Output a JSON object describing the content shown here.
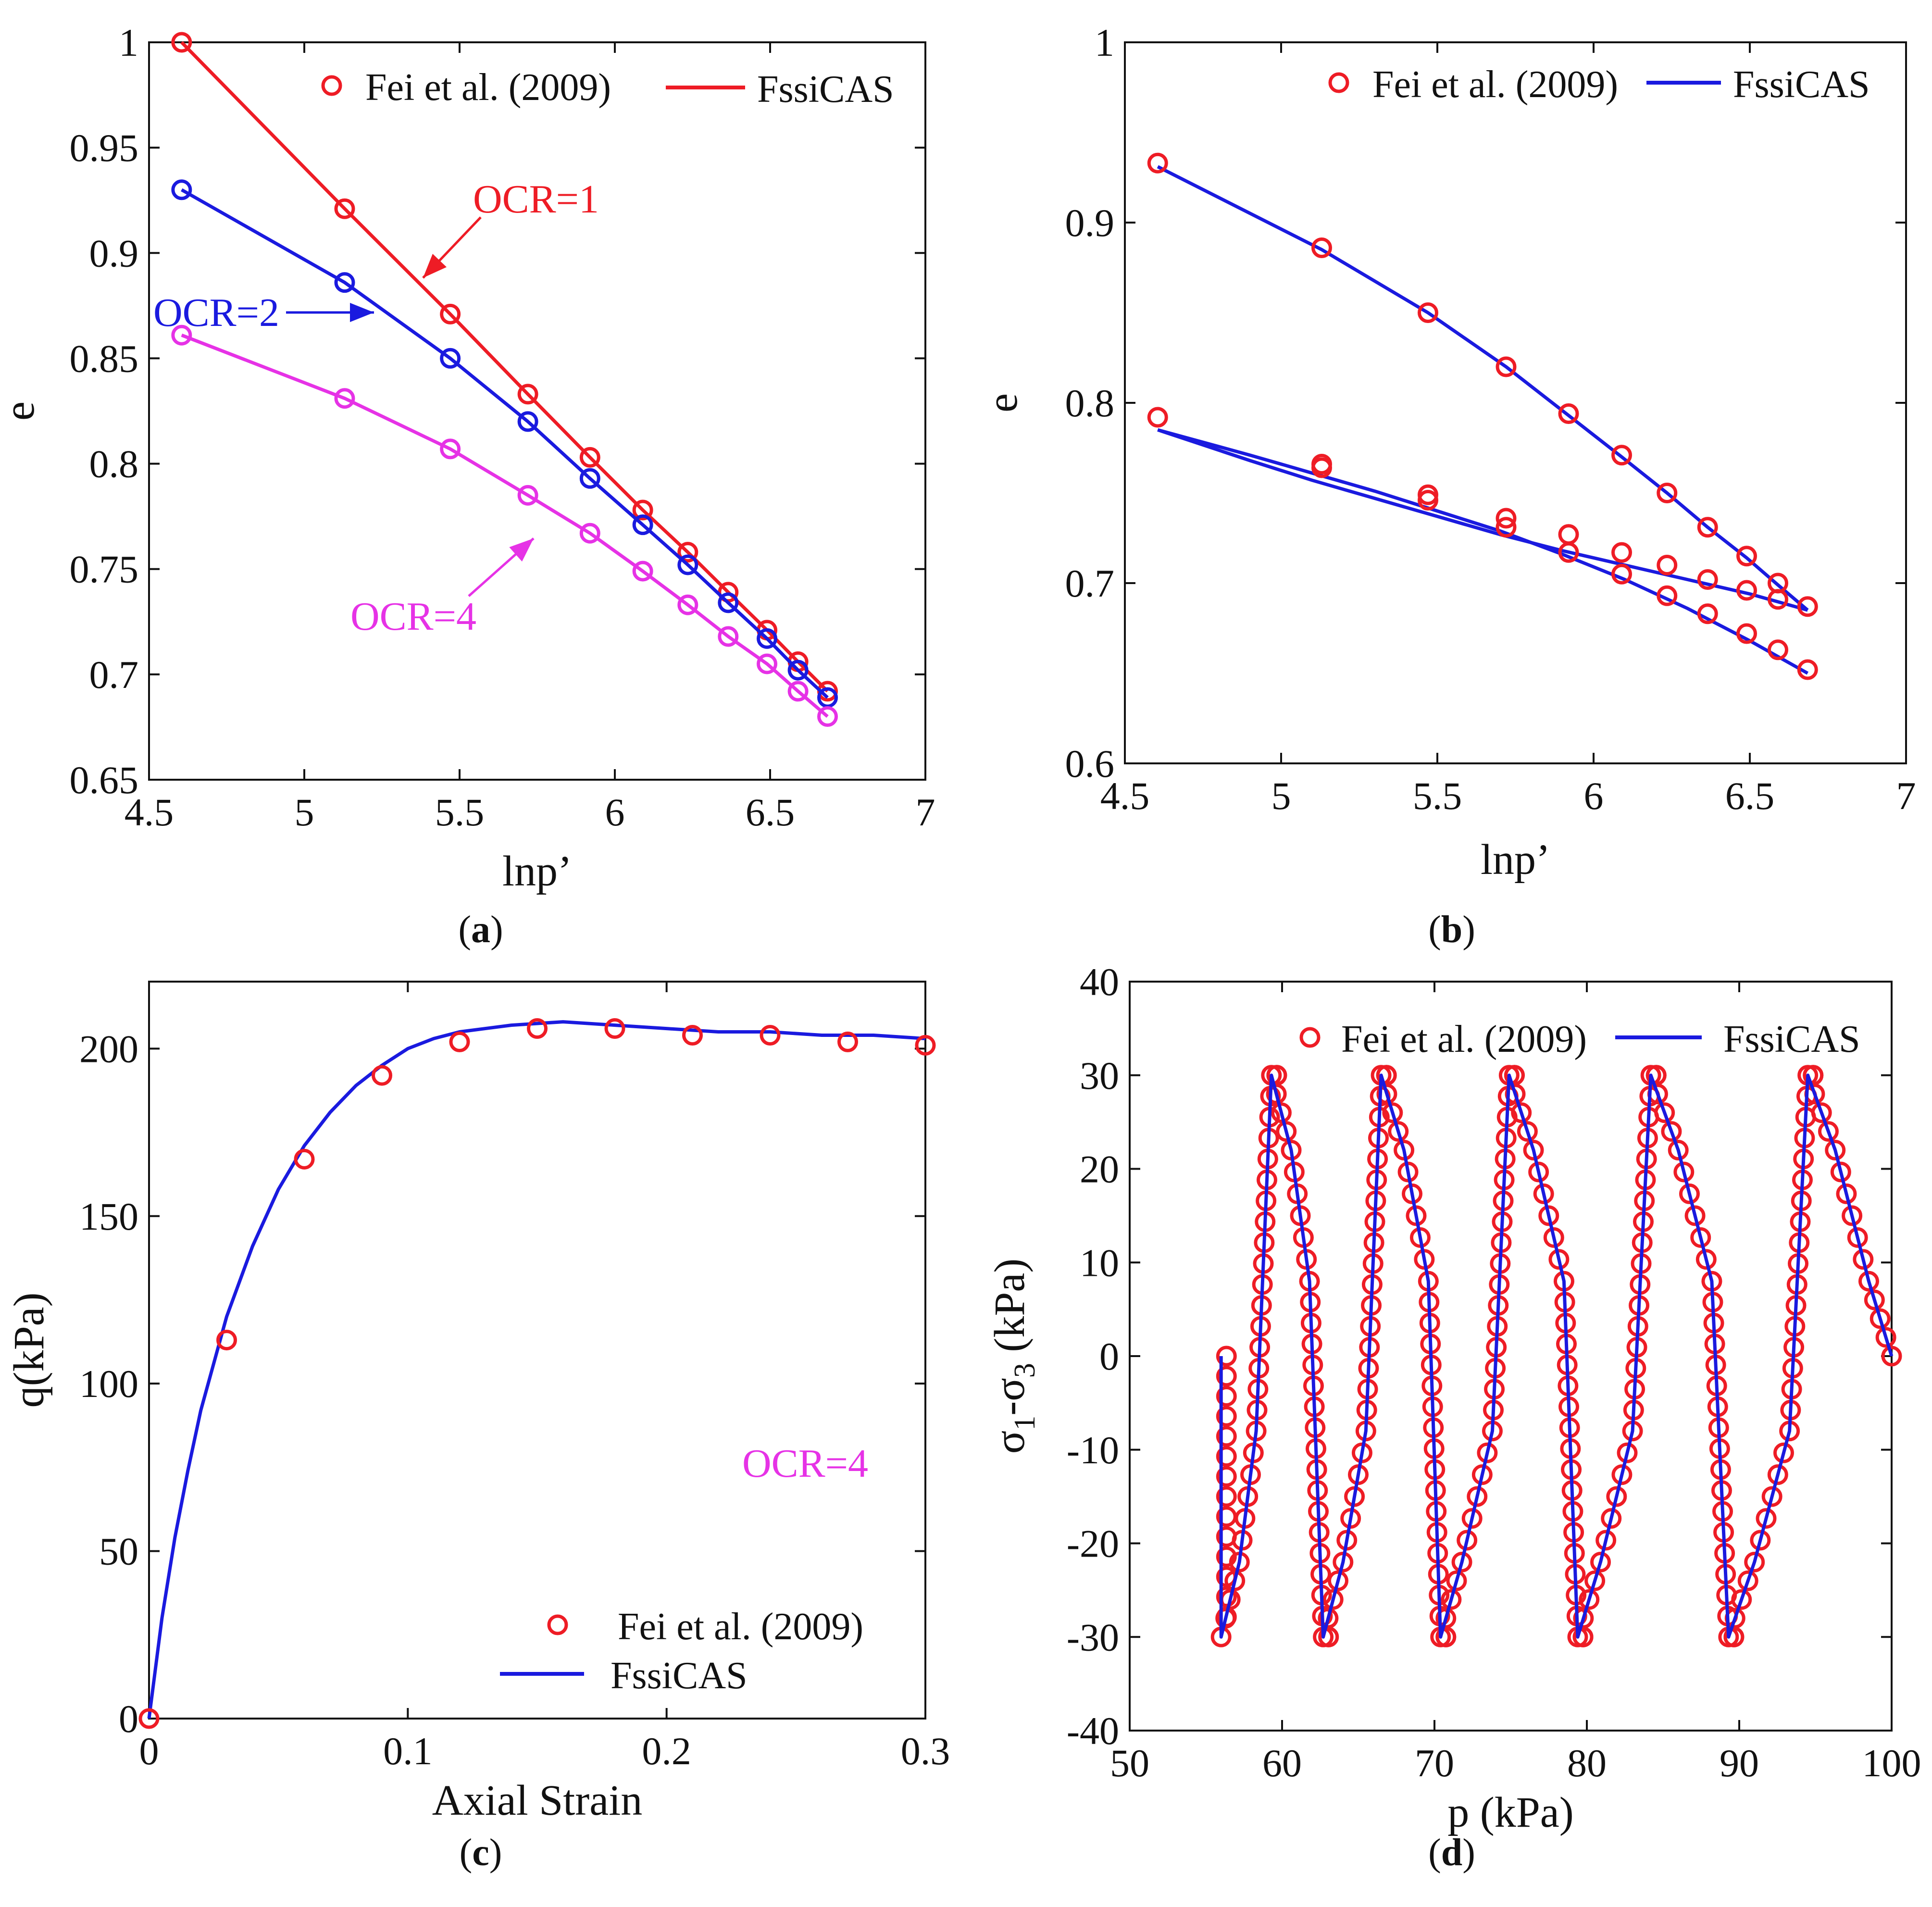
{
  "figure": {
    "panels": [
      "a",
      "b",
      "c",
      "d"
    ]
  },
  "colors": {
    "red": "#ee1c25",
    "blue": "#1a1adf",
    "magenta": "#e632e6",
    "axis": "#111111"
  },
  "chart_data": [
    {
      "id": "a",
      "type": "line",
      "caption": "a",
      "xlabel": "lnp’",
      "ylabel": "e",
      "xlim": [
        4.5,
        7
      ],
      "ylim": [
        0.65,
        1
      ],
      "xticks": [
        "4.5",
        "5",
        "5.5",
        "6",
        "6.5",
        "7"
      ],
      "yticks": [
        "0.65",
        "0.7",
        "0.75",
        "0.8",
        "0.85",
        "0.9",
        "0.95",
        "1"
      ],
      "legend": {
        "position": "top-right",
        "entries": [
          "Fei et al. (2009)",
          "FssiCAS"
        ]
      },
      "annotations": [
        "OCR=1",
        "OCR=2",
        "OCR=4"
      ],
      "series": [
        {
          "name": "OCR=1",
          "color": "red",
          "x": [
            4.605,
            5.13,
            5.47,
            5.72,
            5.92,
            6.09,
            6.235,
            6.365,
            6.49,
            6.59,
            6.685
          ],
          "y": [
            1.0,
            0.921,
            0.871,
            0.833,
            0.803,
            0.778,
            0.758,
            0.739,
            0.721,
            0.706,
            0.692
          ]
        },
        {
          "name": "OCR=2",
          "color": "blue",
          "x": [
            4.605,
            5.13,
            5.47,
            5.72,
            5.92,
            6.09,
            6.235,
            6.365,
            6.49,
            6.59,
            6.685
          ],
          "y": [
            0.93,
            0.886,
            0.85,
            0.82,
            0.793,
            0.771,
            0.752,
            0.734,
            0.717,
            0.702,
            0.689
          ]
        },
        {
          "name": "OCR=4",
          "color": "magenta",
          "x": [
            4.605,
            5.13,
            5.47,
            5.72,
            5.92,
            6.09,
            6.235,
            6.365,
            6.49,
            6.59,
            6.685
          ],
          "y": [
            0.861,
            0.831,
            0.807,
            0.785,
            0.767,
            0.749,
            0.733,
            0.718,
            0.705,
            0.692,
            0.68
          ]
        }
      ]
    },
    {
      "id": "b",
      "type": "line",
      "caption": "b",
      "xlabel": "lnp’",
      "ylabel": "e",
      "xlim": [
        4.5,
        7
      ],
      "ylim": [
        0.6,
        1
      ],
      "xticks": [
        "4.5",
        "5",
        "5.5",
        "6",
        "6.5",
        "7"
      ],
      "yticks": [
        "0.6",
        "0.7",
        "0.8",
        "0.9",
        "1"
      ],
      "legend": {
        "position": "top-right",
        "entries": [
          "Fei et al. (2009)",
          "FssiCAS"
        ]
      },
      "experimental": [
        {
          "x": [
            4.605,
            5.13,
            5.47,
            5.72,
            5.92,
            6.09,
            6.235,
            6.365,
            6.49,
            6.59,
            6.685
          ],
          "y": [
            0.933,
            0.886,
            0.85,
            0.82,
            0.794,
            0.771,
            0.75,
            0.731,
            0.715,
            0.7,
            0.687
          ]
        },
        {
          "x": [
            4.605,
            5.13,
            5.13,
            5.47,
            5.47,
            5.72,
            5.72,
            5.92,
            5.92,
            6.09,
            6.09,
            6.235,
            6.235,
            6.365,
            6.365,
            6.49,
            6.49,
            6.59,
            6.59,
            6.685
          ],
          "y": [
            0.792,
            0.766,
            0.764,
            0.749,
            0.746,
            0.736,
            0.731,
            0.727,
            0.717,
            0.717,
            0.705,
            0.71,
            0.693,
            0.702,
            0.683,
            0.696,
            0.672,
            0.691,
            0.663,
            0.652
          ]
        }
      ],
      "model": [
        {
          "x": [
            4.605,
            5.13,
            5.47,
            5.72,
            5.92,
            6.09,
            6.235,
            6.365,
            6.49,
            6.59,
            6.685
          ],
          "y": [
            0.931,
            0.885,
            0.85,
            0.82,
            0.793,
            0.77,
            0.75,
            0.731,
            0.714,
            0.699,
            0.685
          ]
        },
        {
          "x": [
            6.685,
            6.5,
            6.3,
            6.1,
            5.9,
            5.7,
            5.5,
            5.3,
            5.1,
            4.9,
            4.605
          ],
          "y": [
            0.685,
            0.694,
            0.702,
            0.71,
            0.718,
            0.727,
            0.737,
            0.747,
            0.757,
            0.768,
            0.785
          ]
        },
        {
          "x": [
            4.605,
            4.9,
            5.1,
            5.3,
            5.5,
            5.7,
            5.9,
            6.1,
            6.3,
            6.5,
            6.685
          ],
          "y": [
            0.785,
            0.771,
            0.761,
            0.751,
            0.74,
            0.729,
            0.716,
            0.702,
            0.686,
            0.668,
            0.65
          ]
        }
      ]
    },
    {
      "id": "c",
      "type": "line",
      "caption": "c",
      "xlabel": "Axial Strain",
      "ylabel": "q(kPa)",
      "xlim": [
        0,
        0.3
      ],
      "ylim": [
        0,
        220
      ],
      "xticks": [
        "0",
        "0.1",
        "0.2",
        "0.3"
      ],
      "yticks": [
        "0",
        "50",
        "100",
        "150",
        "200"
      ],
      "legend": {
        "position": "bottom-right",
        "entries": [
          "Fei et al. (2009)",
          "FssiCAS"
        ]
      },
      "annotations": [
        "OCR=4"
      ],
      "experimental": {
        "x": [
          0,
          0.03,
          0.06,
          0.09,
          0.12,
          0.15,
          0.18,
          0.21,
          0.24,
          0.27,
          0.3
        ],
        "y": [
          0,
          113,
          167,
          192,
          202,
          206,
          206,
          204,
          204,
          202,
          201
        ]
      },
      "model": {
        "x": [
          0,
          0.005,
          0.01,
          0.015,
          0.02,
          0.03,
          0.04,
          0.05,
          0.06,
          0.07,
          0.08,
          0.09,
          0.1,
          0.11,
          0.12,
          0.14,
          0.16,
          0.18,
          0.2,
          0.22,
          0.24,
          0.26,
          0.28,
          0.3
        ],
        "y": [
          0,
          30,
          54,
          74,
          92,
          120,
          141,
          158,
          171,
          181,
          189,
          195,
          200,
          203,
          205,
          207,
          208,
          207,
          206,
          205,
          205,
          204,
          204,
          203
        ]
      }
    },
    {
      "id": "d",
      "type": "line",
      "caption": "d",
      "xlabel": "p (kPa)",
      "ylabel": "σ1-σ3 (kPa)",
      "ylabel_parts": [
        "σ",
        "1",
        "-σ",
        "3",
        " (kPa)"
      ],
      "xlim": [
        50,
        100
      ],
      "ylim": [
        -40,
        40
      ],
      "xticks": [
        "50",
        "60",
        "70",
        "80",
        "90",
        "100"
      ],
      "yticks": [
        "-40",
        "-30",
        "-20",
        "-10",
        "0",
        "10",
        "20",
        "30",
        "40"
      ],
      "legend": {
        "position": "top-right",
        "entries": [
          "Fei et al. (2009)",
          "FssiCAS"
        ]
      },
      "model": {
        "x": [
          56.0,
          56.0,
          57.2,
          58.3,
          59.3,
          59.3,
          60.6,
          61.8,
          62.7,
          62.7,
          64.0,
          65.5,
          66.5,
          66.5,
          68.0,
          69.6,
          70.4,
          70.4,
          71.8,
          73.8,
          74.9,
          74.9,
          76.5,
          78.5,
          79.4,
          79.4,
          80.9,
          83.0,
          84.2,
          84.2,
          86.0,
          88.2,
          89.3,
          89.3,
          91.0,
          93.3,
          94.5,
          94.5,
          96.3,
          98.5,
          100.0
        ],
        "y": [
          0,
          -30,
          -22,
          -8,
          30,
          30,
          22,
          8,
          -30,
          -30,
          -22,
          -8,
          30,
          30,
          22,
          8,
          -30,
          -30,
          -22,
          -8,
          30,
          30,
          22,
          8,
          -30,
          -30,
          -22,
          -8,
          30,
          30,
          22,
          8,
          -30,
          -30,
          -22,
          -8,
          30,
          30,
          22,
          8,
          0
        ]
      }
    }
  ]
}
